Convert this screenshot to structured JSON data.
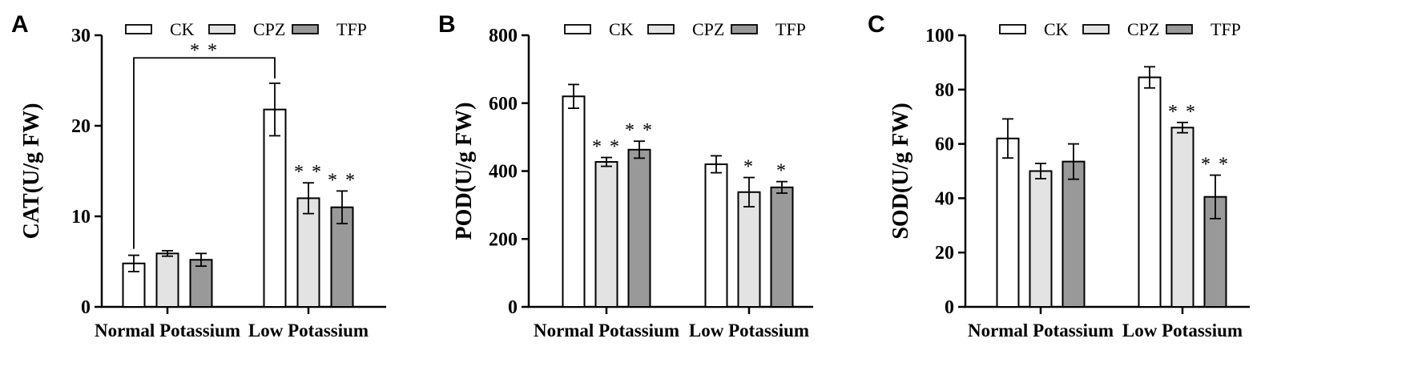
{
  "colors": {
    "CK": "#ffffff",
    "CPZ": "#e3e3e3",
    "TFP": "#999999",
    "stroke": "#000000"
  },
  "chart_data": [
    {
      "type": "bar",
      "panel": "A",
      "ylabel": "CAT(U/g FW)",
      "ylim": [
        0,
        30
      ],
      "yticks": [
        0,
        10,
        20,
        30
      ],
      "yticklabels": [
        "0",
        "10",
        "20",
        "30"
      ],
      "categories": [
        "Normal Potassium",
        "Low Potassium"
      ],
      "series": [
        {
          "name": "CK",
          "values": [
            4.8,
            21.8
          ],
          "errors": [
            0.9,
            2.9
          ],
          "sig": [
            "",
            ""
          ]
        },
        {
          "name": "CPZ",
          "values": [
            5.9,
            12.0
          ],
          "errors": [
            0.3,
            1.7
          ],
          "sig": [
            "",
            "**"
          ]
        },
        {
          "name": "TFP",
          "values": [
            5.2,
            11.0
          ],
          "errors": [
            0.7,
            1.8
          ],
          "sig": [
            "",
            "**"
          ]
        }
      ],
      "bracket": {
        "from_group": 0,
        "to_group": 1,
        "series": "CK",
        "level": 27.5,
        "label": "**"
      },
      "legend": [
        "CK",
        "CPZ",
        "TFP"
      ]
    },
    {
      "type": "bar",
      "panel": "B",
      "ylabel": "POD(U/g FW)",
      "ylim": [
        0,
        800
      ],
      "yticks": [
        0,
        200,
        400,
        600,
        800
      ],
      "yticklabels": [
        "0",
        "200",
        "400",
        "600",
        "800"
      ],
      "categories": [
        "Normal Potassium",
        "Low Potassium"
      ],
      "series": [
        {
          "name": "CK",
          "values": [
            620,
            420
          ],
          "errors": [
            35,
            25
          ],
          "sig": [
            "",
            ""
          ]
        },
        {
          "name": "CPZ",
          "values": [
            427,
            338
          ],
          "errors": [
            13,
            43
          ],
          "sig": [
            "**",
            "*"
          ]
        },
        {
          "name": "TFP",
          "values": [
            463,
            352
          ],
          "errors": [
            25,
            17
          ],
          "sig": [
            "**",
            "*"
          ]
        }
      ],
      "legend": [
        "CK",
        "CPZ",
        "TFP"
      ]
    },
    {
      "type": "bar",
      "panel": "C",
      "ylabel": "SOD(U/g FW)",
      "ylim": [
        0,
        100
      ],
      "yticks": [
        0,
        20,
        40,
        60,
        80,
        100
      ],
      "yticklabels": [
        "0",
        "20",
        "40",
        "60",
        "80",
        "100"
      ],
      "categories": [
        "Normal Potassium",
        "Low Potassium"
      ],
      "series": [
        {
          "name": "CK",
          "values": [
            62,
            84.5
          ],
          "errors": [
            7.2,
            3.9
          ],
          "sig": [
            "",
            ""
          ]
        },
        {
          "name": "CPZ",
          "values": [
            50,
            66
          ],
          "errors": [
            2.8,
            1.9
          ],
          "sig": [
            "",
            "**"
          ]
        },
        {
          "name": "TFP",
          "values": [
            53.5,
            40.5
          ],
          "errors": [
            6.5,
            8.0
          ],
          "sig": [
            "",
            "**"
          ]
        }
      ],
      "legend": [
        "CK",
        "CPZ",
        "TFP"
      ]
    }
  ]
}
